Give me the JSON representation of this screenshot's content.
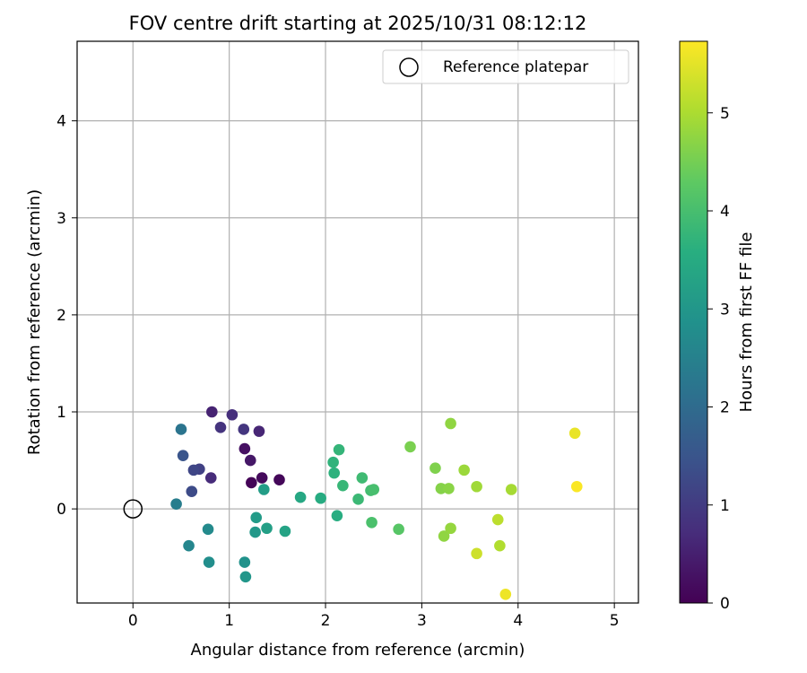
{
  "chart_data": {
    "type": "scatter",
    "title": "FOV centre drift starting at 2025/10/31 08:12:12",
    "xlabel": "Angular distance from reference (arcmin)",
    "ylabel": "Rotation from reference (arcmin)",
    "xlim": [
      -0.58,
      5.25
    ],
    "ylim": [
      -0.97,
      4.82
    ],
    "xticks": [
      "0",
      "1",
      "2",
      "3",
      "4",
      "5"
    ],
    "yticks": [
      "0",
      "1",
      "2",
      "3",
      "4"
    ],
    "grid": true,
    "legend": {
      "placement": "top-right",
      "entries": [
        "Reference platepar"
      ]
    },
    "reference_point": {
      "name": "Reference platepar",
      "x": 0,
      "y": 0
    },
    "colorbar": {
      "label": "Hours from first FF file",
      "colormap": "viridis",
      "range": [
        0,
        5.73
      ],
      "ticks": [
        "0",
        "1",
        "2",
        "3",
        "4",
        "5"
      ]
    },
    "points": [
      {
        "x": 1.23,
        "y": 0.27,
        "h": 0.05
      },
      {
        "x": 1.52,
        "y": 0.3,
        "h": 0.1
      },
      {
        "x": 1.34,
        "y": 0.32,
        "h": 0.15
      },
      {
        "x": 1.16,
        "y": 0.62,
        "h": 0.25
      },
      {
        "x": 1.22,
        "y": 0.5,
        "h": 0.35
      },
      {
        "x": 0.82,
        "y": 1.0,
        "h": 0.55
      },
      {
        "x": 1.31,
        "y": 0.8,
        "h": 0.6
      },
      {
        "x": 0.81,
        "y": 0.32,
        "h": 0.7
      },
      {
        "x": 1.03,
        "y": 0.97,
        "h": 0.75
      },
      {
        "x": 0.91,
        "y": 0.84,
        "h": 0.85
      },
      {
        "x": 1.15,
        "y": 0.82,
        "h": 0.9
      },
      {
        "x": 0.69,
        "y": 0.41,
        "h": 1.1
      },
      {
        "x": 0.63,
        "y": 0.4,
        "h": 1.2
      },
      {
        "x": 0.61,
        "y": 0.18,
        "h": 1.3
      },
      {
        "x": 0.52,
        "y": 0.55,
        "h": 1.5
      },
      {
        "x": 0.5,
        "y": 0.82,
        "h": 2.2
      },
      {
        "x": 0.45,
        "y": 0.05,
        "h": 2.4
      },
      {
        "x": 0.58,
        "y": -0.38,
        "h": 2.6
      },
      {
        "x": 0.78,
        "y": -0.21,
        "h": 2.7
      },
      {
        "x": 0.79,
        "y": -0.55,
        "h": 2.8
      },
      {
        "x": 1.16,
        "y": -0.55,
        "h": 2.9
      },
      {
        "x": 1.17,
        "y": -0.7,
        "h": 3.0
      },
      {
        "x": 1.27,
        "y": -0.24,
        "h": 3.05
      },
      {
        "x": 1.28,
        "y": -0.09,
        "h": 3.1
      },
      {
        "x": 1.36,
        "y": 0.2,
        "h": 3.15
      },
      {
        "x": 1.39,
        "y": -0.2,
        "h": 3.2
      },
      {
        "x": 1.58,
        "y": -0.23,
        "h": 3.3
      },
      {
        "x": 1.74,
        "y": 0.12,
        "h": 3.4
      },
      {
        "x": 1.95,
        "y": 0.11,
        "h": 3.5
      },
      {
        "x": 2.12,
        "y": -0.07,
        "h": 3.55
      },
      {
        "x": 2.09,
        "y": 0.37,
        "h": 3.65
      },
      {
        "x": 2.08,
        "y": 0.48,
        "h": 3.7
      },
      {
        "x": 2.14,
        "y": 0.61,
        "h": 3.75
      },
      {
        "x": 2.18,
        "y": 0.24,
        "h": 3.8
      },
      {
        "x": 2.34,
        "y": 0.1,
        "h": 3.85
      },
      {
        "x": 2.38,
        "y": 0.32,
        "h": 3.9
      },
      {
        "x": 2.47,
        "y": 0.19,
        "h": 3.95
      },
      {
        "x": 2.5,
        "y": 0.2,
        "h": 4.0
      },
      {
        "x": 2.48,
        "y": -0.14,
        "h": 4.05
      },
      {
        "x": 2.76,
        "y": -0.21,
        "h": 4.2
      },
      {
        "x": 2.88,
        "y": 0.64,
        "h": 4.55
      },
      {
        "x": 3.14,
        "y": 0.42,
        "h": 4.6
      },
      {
        "x": 3.2,
        "y": 0.21,
        "h": 4.65
      },
      {
        "x": 3.28,
        "y": 0.21,
        "h": 4.7
      },
      {
        "x": 3.3,
        "y": 0.88,
        "h": 4.75
      },
      {
        "x": 3.23,
        "y": -0.28,
        "h": 4.75
      },
      {
        "x": 3.3,
        "y": -0.2,
        "h": 4.8
      },
      {
        "x": 3.44,
        "y": 0.4,
        "h": 4.85
      },
      {
        "x": 3.57,
        "y": 0.23,
        "h": 4.9
      },
      {
        "x": 3.93,
        "y": 0.2,
        "h": 4.95
      },
      {
        "x": 3.81,
        "y": -0.38,
        "h": 5.05
      },
      {
        "x": 3.79,
        "y": -0.11,
        "h": 5.15
      },
      {
        "x": 3.57,
        "y": -0.46,
        "h": 5.3
      },
      {
        "x": 4.59,
        "y": 0.78,
        "h": 5.55
      },
      {
        "x": 3.87,
        "y": -0.88,
        "h": 5.6
      },
      {
        "x": 4.61,
        "y": 0.23,
        "h": 5.7
      }
    ]
  }
}
